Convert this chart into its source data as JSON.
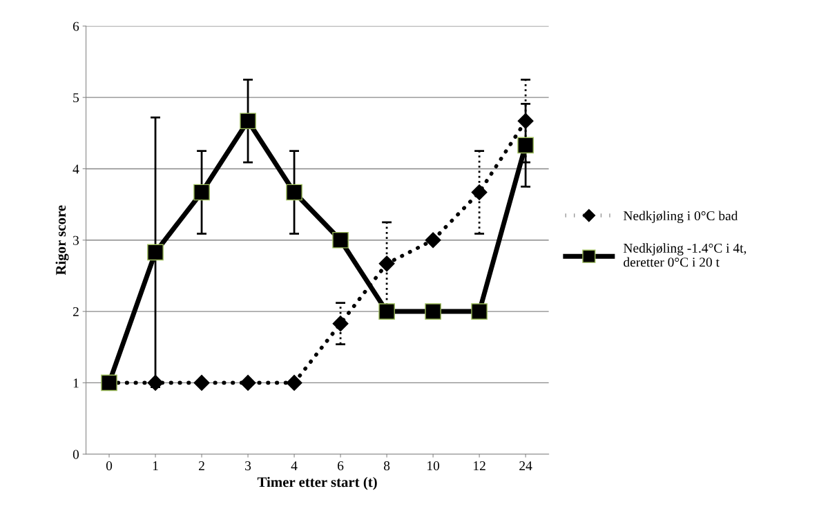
{
  "chart_data": {
    "type": "line",
    "xlabel": "Timer etter start (t)",
    "ylabel": "Rigor score",
    "categories": [
      "0",
      "1",
      "2",
      "3",
      "4",
      "6",
      "8",
      "10",
      "12",
      "24"
    ],
    "series": [
      {
        "name": "Nedkjøling i 0°C bad",
        "color": "#000000",
        "marker": "diamond",
        "line_style": "dotted",
        "values": [
          1,
          1,
          1,
          1,
          1,
          1.83,
          2.67,
          3,
          3.67,
          4.67
        ],
        "errors": [
          null,
          null,
          null,
          null,
          null,
          0.29,
          0.58,
          null,
          0.58,
          0.58
        ]
      },
      {
        "name": "Nedkjøling -1.4°C i 4t,\nderetter 0°C i 20 t",
        "color": "#000000",
        "marker": "square",
        "line_style": "solid",
        "values": [
          1,
          2.83,
          3.67,
          4.67,
          3.67,
          3,
          2,
          2,
          2,
          4.33
        ],
        "errors": [
          null,
          1.89,
          0.58,
          0.58,
          0.58,
          null,
          null,
          null,
          null,
          0.58
        ]
      }
    ],
    "ylim": [
      0,
      6
    ],
    "yticks": [
      0,
      1,
      2,
      3,
      4,
      5,
      6
    ],
    "grid": "y",
    "legend": "right"
  }
}
